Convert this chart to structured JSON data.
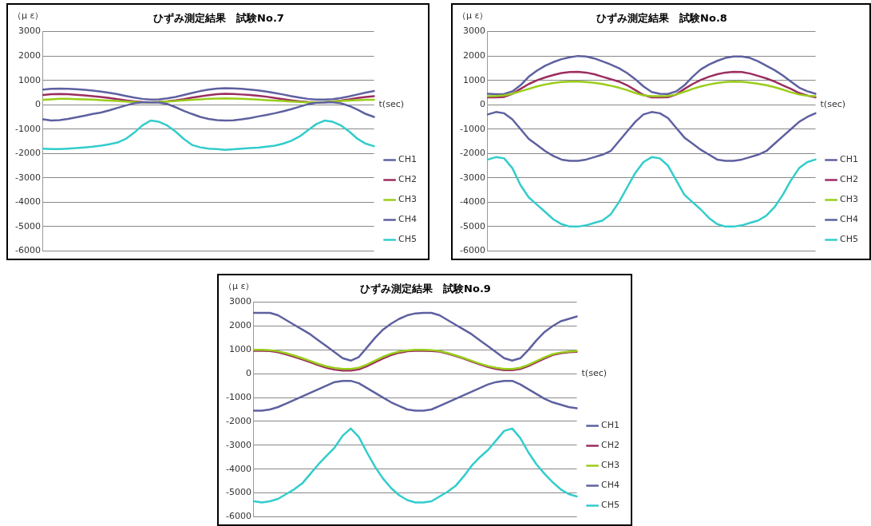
{
  "chart_data": [
    {
      "type": "line",
      "title": "ひずみ測定結果　試験No.7",
      "ylabel": "（μ ε）",
      "xlabel": "t(sec)",
      "legend": "bottom right",
      "grid": "y",
      "tick_labels": "y",
      "marker": "none",
      "line_style": "solid",
      "ylim": [
        -6000,
        3000
      ],
      "yticks": [
        -6000,
        -5000,
        -4000,
        -3000,
        -2000,
        -1000,
        0,
        1000,
        2000,
        3000
      ],
      "categories": [
        null,
        null,
        null,
        null,
        null,
        null,
        null,
        null,
        null,
        null,
        null,
        null,
        null,
        null,
        null,
        null,
        null,
        null,
        null,
        null,
        null,
        null,
        null,
        null,
        null,
        null,
        null,
        null,
        null,
        null,
        null,
        null,
        null,
        null,
        null,
        null,
        null,
        null,
        null,
        null,
        null
      ],
      "series": [
        {
          "name": "CH1",
          "color": "#5e60a0",
          "values": [
            620,
            650,
            660,
            650,
            640,
            610,
            580,
            540,
            490,
            430,
            360,
            290,
            240,
            210,
            220,
            260,
            320,
            400,
            480,
            560,
            620,
            660,
            680,
            670,
            650,
            620,
            590,
            540,
            480,
            420,
            350,
            290,
            240,
            210,
            210,
            230,
            280,
            340,
            420,
            500,
            560
          ]
        },
        {
          "name": "CH2",
          "color": "#9b2d5f",
          "values": [
            400,
            430,
            440,
            430,
            410,
            380,
            350,
            320,
            280,
            230,
            180,
            140,
            110,
            100,
            110,
            140,
            180,
            230,
            290,
            340,
            390,
            430,
            450,
            440,
            420,
            400,
            370,
            330,
            280,
            230,
            180,
            140,
            110,
            100,
            100,
            130,
            170,
            220,
            280,
            320,
            350
          ]
        },
        {
          "name": "CH3",
          "color": "#9acd1a",
          "values": [
            200,
            220,
            240,
            240,
            230,
            220,
            210,
            190,
            170,
            150,
            130,
            110,
            100,
            100,
            110,
            130,
            150,
            180,
            200,
            220,
            240,
            250,
            260,
            250,
            240,
            230,
            210,
            190,
            170,
            150,
            130,
            110,
            100,
            100,
            110,
            130,
            150,
            170,
            190,
            200,
            200
          ]
        },
        {
          "name": "CH4",
          "color": "#5e60a0",
          "values": [
            -600,
            -650,
            -630,
            -580,
            -520,
            -450,
            -380,
            -320,
            -230,
            -130,
            -30,
            60,
            100,
            100,
            90,
            30,
            -100,
            -250,
            -380,
            -500,
            -580,
            -630,
            -650,
            -640,
            -600,
            -550,
            -480,
            -420,
            -350,
            -270,
            -180,
            -80,
            20,
            80,
            100,
            100,
            60,
            -50,
            -200,
            -380,
            -500
          ]
        },
        {
          "name": "CH5",
          "color": "#33cccc",
          "values": [
            -1800,
            -1820,
            -1820,
            -1800,
            -1780,
            -1750,
            -1720,
            -1680,
            -1620,
            -1550,
            -1400,
            -1150,
            -850,
            -650,
            -700,
            -850,
            -1100,
            -1400,
            -1650,
            -1750,
            -1800,
            -1820,
            -1850,
            -1830,
            -1800,
            -1780,
            -1760,
            -1720,
            -1680,
            -1600,
            -1480,
            -1300,
            -1050,
            -800,
            -650,
            -700,
            -850,
            -1100,
            -1400,
            -1600,
            -1700
          ]
        }
      ]
    },
    {
      "type": "line",
      "title": "ひずみ測定結果　試験No.8",
      "ylabel": "（μ ε）",
      "xlabel": "t(sec)",
      "legend": "bottom right",
      "grid": "y",
      "tick_labels": "y",
      "marker": "none",
      "line_style": "solid",
      "ylim": [
        -6000,
        3000
      ],
      "yticks": [
        -6000,
        -5000,
        -4000,
        -3000,
        -2000,
        -1000,
        0,
        1000,
        2000,
        3000
      ],
      "categories": [
        null,
        null,
        null,
        null,
        null,
        null,
        null,
        null,
        null,
        null,
        null,
        null,
        null,
        null,
        null,
        null,
        null,
        null,
        null,
        null,
        null,
        null,
        null,
        null,
        null,
        null,
        null,
        null,
        null,
        null,
        null,
        null,
        null,
        null,
        null,
        null,
        null,
        null,
        null,
        null,
        null
      ],
      "series": [
        {
          "name": "CH1",
          "color": "#5e60a0",
          "values": [
            450,
            430,
            440,
            550,
            800,
            1150,
            1400,
            1600,
            1750,
            1870,
            1950,
            2000,
            1980,
            1900,
            1780,
            1650,
            1500,
            1300,
            1050,
            750,
            520,
            450,
            440,
            550,
            800,
            1150,
            1450,
            1650,
            1800,
            1920,
            1980,
            1980,
            1920,
            1780,
            1600,
            1420,
            1200,
            950,
            700,
            550,
            450
          ]
        },
        {
          "name": "CH2",
          "color": "#9b2d5f",
          "values": [
            300,
            300,
            320,
            450,
            650,
            850,
            1000,
            1120,
            1220,
            1300,
            1340,
            1350,
            1320,
            1250,
            1150,
            1050,
            950,
            800,
            600,
            400,
            300,
            300,
            310,
            420,
            650,
            850,
            1020,
            1150,
            1250,
            1320,
            1350,
            1340,
            1280,
            1180,
            1080,
            950,
            800,
            650,
            480,
            380,
            300
          ]
        },
        {
          "name": "CH3",
          "color": "#9acd1a",
          "values": [
            350,
            360,
            380,
            450,
            550,
            650,
            750,
            830,
            890,
            930,
            950,
            950,
            930,
            900,
            850,
            780,
            700,
            600,
            480,
            380,
            350,
            350,
            360,
            420,
            530,
            650,
            750,
            830,
            890,
            930,
            950,
            940,
            910,
            860,
            800,
            720,
            620,
            510,
            420,
            370,
            350
          ]
        },
        {
          "name": "CH4",
          "color": "#5e60a0",
          "values": [
            -400,
            -300,
            -350,
            -600,
            -1000,
            -1400,
            -1650,
            -1900,
            -2100,
            -2250,
            -2300,
            -2300,
            -2250,
            -2150,
            -2050,
            -1900,
            -1500,
            -1100,
            -700,
            -400,
            -300,
            -350,
            -550,
            -950,
            -1350,
            -1600,
            -1850,
            -2050,
            -2250,
            -2300,
            -2300,
            -2250,
            -2150,
            -2050,
            -1900,
            -1600,
            -1300,
            -1000,
            -700,
            -500,
            -350
          ]
        },
        {
          "name": "CH5",
          "color": "#33cccc",
          "values": [
            -2250,
            -2150,
            -2200,
            -2600,
            -3300,
            -3800,
            -4100,
            -4400,
            -4700,
            -4900,
            -5000,
            -5000,
            -4950,
            -4850,
            -4750,
            -4500,
            -4000,
            -3400,
            -2800,
            -2350,
            -2150,
            -2200,
            -2500,
            -3100,
            -3700,
            -4000,
            -4300,
            -4650,
            -4900,
            -5000,
            -5000,
            -4950,
            -4850,
            -4750,
            -4550,
            -4200,
            -3700,
            -3100,
            -2600,
            -2350,
            -2250
          ]
        }
      ]
    },
    {
      "type": "line",
      "title": "ひずみ測定結果　試験No.9",
      "ylabel": "（μ ε）",
      "xlabel": "t(sec)",
      "legend": "bottom right",
      "grid": "y",
      "tick_labels": "y",
      "marker": "none",
      "line_style": "solid",
      "ylim": [
        -6000,
        3000
      ],
      "yticks": [
        -6000,
        -5000,
        -4000,
        -3000,
        -2000,
        -1000,
        0,
        1000,
        2000,
        3000
      ],
      "categories": [
        null,
        null,
        null,
        null,
        null,
        null,
        null,
        null,
        null,
        null,
        null,
        null,
        null,
        null,
        null,
        null,
        null,
        null,
        null,
        null,
        null,
        null,
        null,
        null,
        null,
        null,
        null,
        null,
        null,
        null,
        null,
        null,
        null,
        null,
        null,
        null,
        null,
        null,
        null,
        null,
        null
      ],
      "series": [
        {
          "name": "CH1",
          "color": "#5e60a0",
          "values": [
            2550,
            2550,
            2550,
            2450,
            2250,
            2050,
            1850,
            1650,
            1400,
            1150,
            900,
            650,
            550,
            700,
            1100,
            1500,
            1850,
            2100,
            2300,
            2450,
            2530,
            2550,
            2550,
            2450,
            2250,
            2050,
            1850,
            1650,
            1400,
            1150,
            900,
            650,
            550,
            650,
            1000,
            1400,
            1750,
            2000,
            2200,
            2300,
            2400
          ]
        },
        {
          "name": "CH2",
          "color": "#9b2d5f",
          "values": [
            960,
            960,
            950,
            900,
            810,
            710,
            600,
            480,
            360,
            250,
            170,
            130,
            130,
            180,
            310,
            480,
            640,
            780,
            880,
            940,
            960,
            960,
            950,
            930,
            840,
            740,
            630,
            510,
            390,
            280,
            200,
            150,
            150,
            200,
            320,
            480,
            640,
            780,
            860,
            900,
            920
          ]
        },
        {
          "name": "CH3",
          "color": "#9acd1a",
          "values": [
            1000,
            1000,
            990,
            940,
            860,
            760,
            650,
            530,
            410,
            310,
            240,
            200,
            200,
            250,
            380,
            550,
            710,
            840,
            930,
            980,
            1000,
            1000,
            990,
            950,
            870,
            770,
            660,
            540,
            420,
            320,
            250,
            200,
            200,
            250,
            370,
            530,
            690,
            820,
            890,
            930,
            950
          ]
        },
        {
          "name": "CH4",
          "color": "#5e60a0",
          "values": [
            -1550,
            -1550,
            -1500,
            -1400,
            -1250,
            -1100,
            -950,
            -800,
            -650,
            -500,
            -350,
            -300,
            -300,
            -400,
            -600,
            -800,
            -1000,
            -1200,
            -1350,
            -1500,
            -1550,
            -1550,
            -1500,
            -1350,
            -1200,
            -1050,
            -900,
            -750,
            -600,
            -450,
            -350,
            -300,
            -300,
            -450,
            -650,
            -850,
            -1050,
            -1200,
            -1300,
            -1400,
            -1450
          ]
        },
        {
          "name": "CH5",
          "color": "#33cccc",
          "values": [
            -5350,
            -5400,
            -5350,
            -5250,
            -5050,
            -4850,
            -4600,
            -4200,
            -3800,
            -3450,
            -3100,
            -2600,
            -2300,
            -2650,
            -3300,
            -3900,
            -4400,
            -4800,
            -5100,
            -5300,
            -5400,
            -5400,
            -5350,
            -5150,
            -4950,
            -4700,
            -4300,
            -3850,
            -3500,
            -3200,
            -2800,
            -2400,
            -2300,
            -2700,
            -3300,
            -3800,
            -4200,
            -4550,
            -4850,
            -5050,
            -5150
          ]
        }
      ]
    }
  ]
}
